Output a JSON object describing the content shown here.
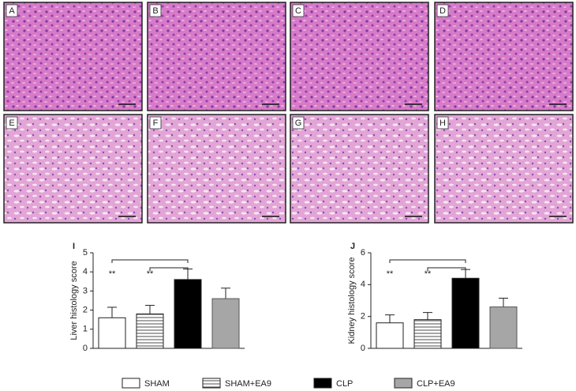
{
  "panels": [
    "A",
    "B",
    "C",
    "D",
    "E",
    "F",
    "G",
    "H"
  ],
  "groups": {
    "names": [
      "SHAM",
      "SHAM+EA9",
      "CLP",
      "CLP+EA9"
    ],
    "colors": [
      "#ffffff",
      "#ffffff",
      "#000000",
      "#a6a6a6"
    ],
    "patterns": [
      "none",
      "horizontal-lines",
      "none",
      "none"
    ]
  },
  "chart_data": [
    {
      "type": "bar",
      "panel_label": "I",
      "ylabel": "Liver histology score",
      "values": [
        1.6,
        1.8,
        3.6,
        2.6
      ],
      "errors": [
        0.55,
        0.45,
        0.55,
        0.55
      ],
      "ylim": [
        0,
        5
      ],
      "yticks": [
        0,
        1,
        2,
        3,
        4,
        5
      ],
      "significance": [
        {
          "label": "**",
          "pair": [
            0,
            2
          ]
        },
        {
          "label": "**",
          "pair": [
            1,
            2
          ]
        }
      ]
    },
    {
      "type": "bar",
      "panel_label": "J",
      "ylabel": "Kidney histology score",
      "values": [
        1.6,
        1.8,
        4.4,
        2.6
      ],
      "errors": [
        0.5,
        0.45,
        0.55,
        0.55
      ],
      "ylim": [
        0,
        6
      ],
      "yticks": [
        0,
        2,
        4,
        6
      ],
      "significance": [
        {
          "label": "**",
          "pair": [
            0,
            2
          ]
        },
        {
          "label": "**",
          "pair": [
            1,
            2
          ]
        }
      ]
    }
  ]
}
